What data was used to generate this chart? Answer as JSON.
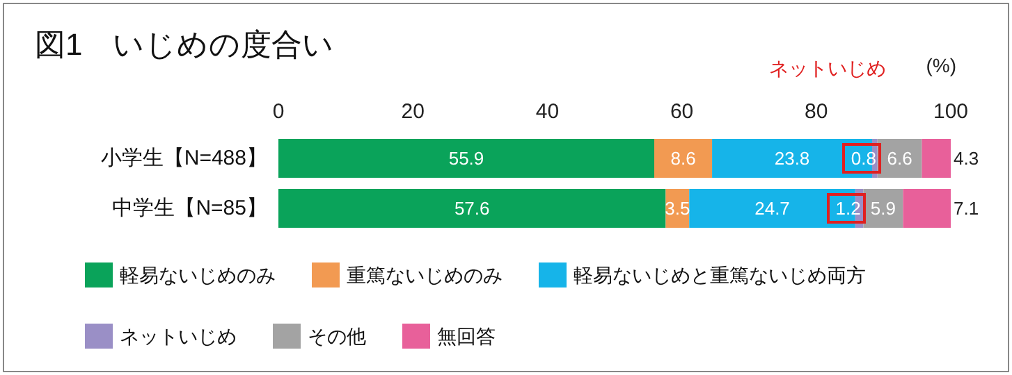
{
  "chart_data": {
    "type": "bar",
    "orientation": "horizontal",
    "stacked": true,
    "title": "図1　いじめの度合い",
    "categories": [
      "小学生【N=488】",
      "中学生【N=85】"
    ],
    "series": [
      {
        "name": "軽易ないじめのみ",
        "color": "#0aa35a",
        "values": [
          55.9,
          57.6
        ]
      },
      {
        "name": "重篤ないじめのみ",
        "color": "#f29a52",
        "values": [
          8.6,
          3.5
        ]
      },
      {
        "name": "軽易ないじめと重篤ないじめ両方",
        "color": "#16b4e9",
        "values": [
          23.8,
          24.7
        ]
      },
      {
        "name": "ネットいじめ",
        "color": "#9a8fc6",
        "values": [
          0.8,
          1.2
        ]
      },
      {
        "name": "その他",
        "color": "#a3a3a3",
        "values": [
          6.6,
          5.9
        ]
      },
      {
        "name": "無回答",
        "color": "#e8609a",
        "values": [
          4.3,
          7.1
        ]
      }
    ],
    "xlim": [
      0,
      100
    ],
    "xticks": [
      0,
      20,
      40,
      60,
      80,
      100
    ],
    "grid": false,
    "legend": "bottom",
    "data_labels": true,
    "annotations": [
      "(%)",
      "ネットいじめ"
    ]
  }
}
